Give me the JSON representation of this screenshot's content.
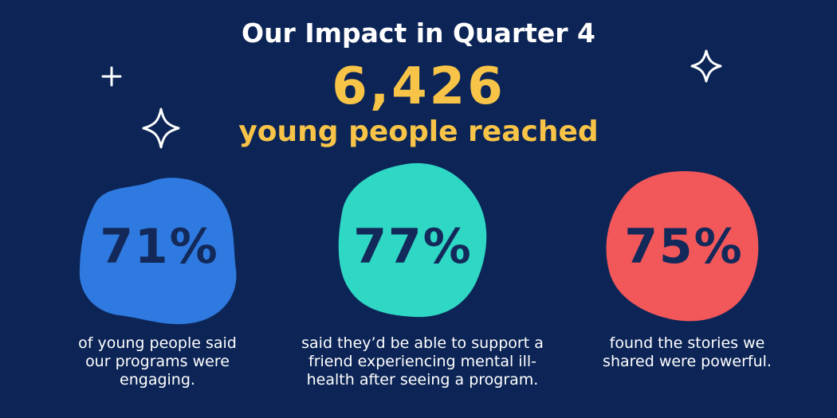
{
  "header": {
    "title": "Our Impact in Quarter 4",
    "headline": "6,426",
    "subtitle": "young people reached"
  },
  "stats": [
    {
      "value": "71%",
      "description": "of young people said our programs were engaging."
    },
    {
      "value": "77%",
      "description": "said they’d be able to support a friend experiencing mental ill-health after seeing a program."
    },
    {
      "value": "75%",
      "description": "found the stories we shared were powerful."
    }
  ]
}
